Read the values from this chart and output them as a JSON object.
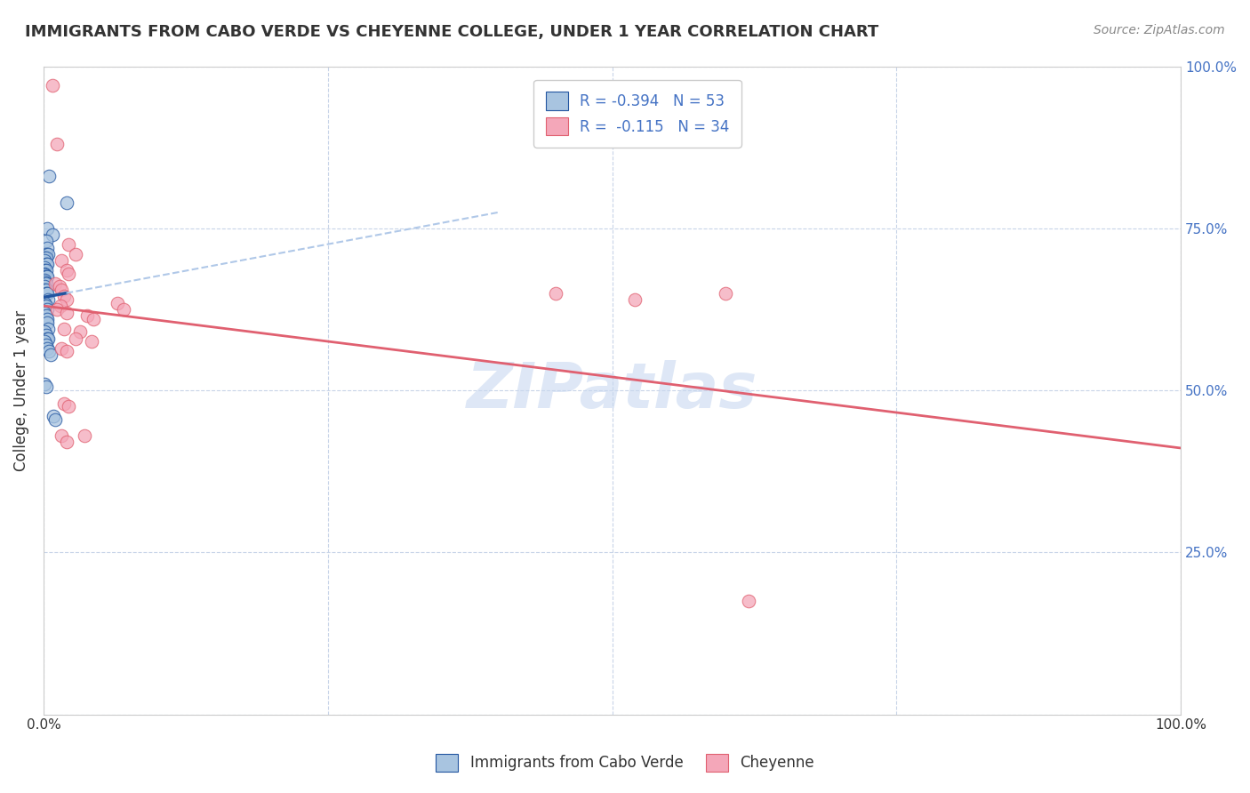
{
  "title": "IMMIGRANTS FROM CABO VERDE VS CHEYENNE COLLEGE, UNDER 1 YEAR CORRELATION CHART",
  "source": "Source: ZipAtlas.com",
  "legend1_label": "Immigrants from Cabo Verde",
  "legend2_label": "Cheyenne",
  "R1": -0.394,
  "N1": 53,
  "R2": -0.115,
  "N2": 34,
  "color_blue": "#a8c4e0",
  "color_pink": "#f4a7b9",
  "line_blue": "#2255a0",
  "line_pink": "#e06070",
  "line_dash": "#b0c8e8",
  "blue_points": [
    [
      0.5,
      83
    ],
    [
      2.0,
      79
    ],
    [
      0.3,
      75
    ],
    [
      0.8,
      74
    ],
    [
      0.2,
      73
    ],
    [
      0.3,
      72
    ],
    [
      0.2,
      71
    ],
    [
      0.4,
      71
    ],
    [
      0.1,
      70.5
    ],
    [
      0.2,
      70.5
    ],
    [
      0.1,
      70
    ],
    [
      0.2,
      69.5
    ],
    [
      0.3,
      69.5
    ],
    [
      0.1,
      69
    ],
    [
      0.1,
      68.5
    ],
    [
      0.2,
      68.5
    ],
    [
      0.1,
      68
    ],
    [
      0.1,
      67.8
    ],
    [
      0.1,
      67.5
    ],
    [
      0.2,
      67.5
    ],
    [
      0.3,
      67.5
    ],
    [
      0.1,
      67
    ],
    [
      0.1,
      66.8
    ],
    [
      0.1,
      66.5
    ],
    [
      0.2,
      66.5
    ],
    [
      0.1,
      66
    ],
    [
      0.1,
      65.5
    ],
    [
      0.2,
      65.5
    ],
    [
      0.2,
      65
    ],
    [
      0.3,
      65
    ],
    [
      0.4,
      64
    ],
    [
      0.1,
      63.5
    ],
    [
      0.1,
      63
    ],
    [
      0.2,
      63
    ],
    [
      0.3,
      62.5
    ],
    [
      0.1,
      62
    ],
    [
      0.2,
      61.5
    ],
    [
      0.3,
      61
    ],
    [
      0.3,
      60.5
    ],
    [
      0.4,
      59.5
    ],
    [
      0.1,
      59
    ],
    [
      0.2,
      58.5
    ],
    [
      0.3,
      58
    ],
    [
      0.4,
      58
    ],
    [
      0.1,
      57.5
    ],
    [
      0.2,
      57
    ],
    [
      0.3,
      56.5
    ],
    [
      0.5,
      56
    ],
    [
      0.6,
      55.5
    ],
    [
      0.1,
      51
    ],
    [
      0.2,
      50.5
    ],
    [
      0.9,
      46
    ],
    [
      1.0,
      45.5
    ]
  ],
  "pink_points": [
    [
      0.8,
      97
    ],
    [
      1.2,
      88
    ],
    [
      2.2,
      72.5
    ],
    [
      2.8,
      71
    ],
    [
      1.6,
      70
    ],
    [
      2.0,
      68.5
    ],
    [
      2.2,
      68
    ],
    [
      1.0,
      66.5
    ],
    [
      1.4,
      66
    ],
    [
      1.6,
      65.5
    ],
    [
      1.8,
      64.5
    ],
    [
      2.0,
      64
    ],
    [
      1.5,
      63
    ],
    [
      1.2,
      62.5
    ],
    [
      2.0,
      62
    ],
    [
      3.8,
      61.5
    ],
    [
      4.4,
      61
    ],
    [
      1.8,
      59.5
    ],
    [
      3.2,
      59
    ],
    [
      2.8,
      58
    ],
    [
      4.2,
      57.5
    ],
    [
      1.6,
      56.5
    ],
    [
      2.0,
      56
    ],
    [
      1.8,
      48
    ],
    [
      2.2,
      47.5
    ],
    [
      1.6,
      43
    ],
    [
      3.6,
      43
    ],
    [
      2.0,
      42
    ],
    [
      6.5,
      63.5
    ],
    [
      7.0,
      62.5
    ],
    [
      45.0,
      65
    ],
    [
      52.0,
      64
    ],
    [
      60.0,
      65
    ],
    [
      62.0,
      17.5
    ]
  ],
  "xlim": [
    0.0,
    100.0
  ],
  "ylim": [
    0.0,
    100.0
  ],
  "xtick_positions": [
    0.0,
    25.0,
    50.0,
    75.0,
    100.0
  ],
  "xtick_labels": [
    "0.0%",
    "",
    "",
    "",
    "100.0%"
  ],
  "ytick_right_labels": [
    "25.0%",
    "50.0%",
    "75.0%",
    "100.0%"
  ],
  "background_color": "#ffffff",
  "grid_color": "#c8d4e8",
  "watermark": "ZIPatlas",
  "watermark_color": "#c8d8f0",
  "ylabel": "College, Under 1 year"
}
